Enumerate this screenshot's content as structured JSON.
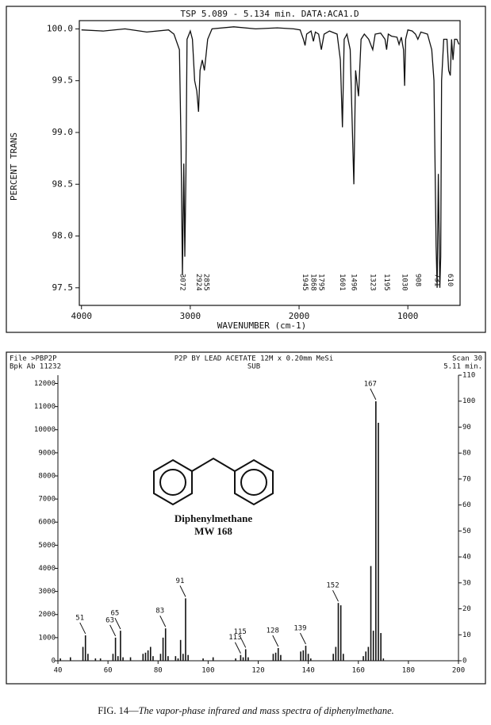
{
  "chart_data": [
    {
      "type": "line",
      "title": "TSP  5.089 - 5.134 min.  DATA:ACA1.D",
      "y_label": "PERCENT TRANS",
      "x_label": "WAVENUMBER (cm-1)",
      "xlim": [
        4020,
        520
      ],
      "xticks": [
        4000,
        3000,
        2000,
        1000
      ],
      "ylim": [
        97.33,
        100.08
      ],
      "yticks": [
        {
          "value": 100,
          "label": "100.0"
        },
        99.5,
        {
          "value": 99,
          "label": "99.0"
        },
        98.5,
        {
          "value": 98,
          "label": "98.0"
        },
        97.5
      ],
      "color": "#111111",
      "x": [
        4000,
        3800,
        3600,
        3400,
        3200,
        3150,
        3100,
        3085,
        3072,
        3060,
        3050,
        3040,
        3030,
        3000,
        2980,
        2960,
        2940,
        2924,
        2910,
        2890,
        2870,
        2855,
        2840,
        2800,
        2600,
        2400,
        2200,
        2050,
        1990,
        1960,
        1945,
        1930,
        1890,
        1868,
        1850,
        1820,
        1795,
        1770,
        1720,
        1650,
        1620,
        1601,
        1585,
        1560,
        1530,
        1496,
        1480,
        1453,
        1430,
        1400,
        1360,
        1323,
        1300,
        1250,
        1210,
        1195,
        1180,
        1150,
        1100,
        1081,
        1060,
        1040,
        1030,
        1020,
        1000,
        960,
        930,
        908,
        880,
        820,
        780,
        760,
        740,
        731,
        720,
        706,
        698,
        690,
        670,
        640,
        625,
        610,
        598,
        585,
        570,
        550,
        530
      ],
      "values": [
        99.99,
        99.98,
        100.0,
        99.97,
        99.99,
        99.95,
        99.8,
        98.9,
        97.62,
        98.7,
        97.8,
        98.6,
        99.9,
        99.98,
        99.9,
        99.5,
        99.4,
        99.2,
        99.6,
        99.7,
        99.6,
        99.75,
        99.9,
        100.0,
        100.02,
        100.0,
        100.01,
        100.0,
        99.99,
        99.9,
        99.84,
        99.95,
        99.98,
        99.88,
        99.97,
        99.95,
        99.8,
        99.95,
        99.98,
        99.95,
        99.7,
        99.05,
        99.9,
        99.95,
        99.8,
        98.5,
        99.6,
        99.35,
        99.9,
        99.95,
        99.9,
        99.8,
        99.95,
        99.96,
        99.9,
        99.8,
        99.95,
        99.93,
        99.92,
        99.85,
        99.92,
        99.8,
        99.45,
        99.9,
        99.99,
        99.98,
        99.95,
        99.9,
        99.97,
        99.95,
        99.8,
        99.5,
        97.9,
        97.5,
        98.6,
        97.5,
        97.8,
        99.5,
        99.9,
        99.9,
        99.6,
        99.55,
        99.9,
        99.7,
        99.9,
        99.9,
        99.85
      ],
      "peak_labels": [
        3072,
        2924,
        2855,
        1945,
        1868,
        1795,
        1601,
        1496,
        1323,
        1195,
        1030,
        908,
        731,
        610
      ]
    },
    {
      "type": "bar",
      "title": "P2P BY LEAD ACETATE 12M x 0.20mm MeSi",
      "subtitle": "SUB",
      "file": "File >PBP2P",
      "base_peak": "Bpk Ab 11232",
      "scan": "Scan 30",
      "time": "5.11 min.",
      "compound": "Diphenylmethane",
      "mw": "MW 168",
      "color": "#111111",
      "xlim": [
        40,
        200
      ],
      "xticks": [
        40,
        60,
        80,
        100,
        120,
        140,
        160,
        180,
        200
      ],
      "ylim": [
        0,
        12360
      ],
      "yticks": [
        0,
        1000,
        2000,
        3000,
        4000,
        5000,
        6000,
        7000,
        8000,
        9000,
        10000,
        11000,
        12000
      ],
      "y2lim": [
        0,
        110
      ],
      "y2ticks": [
        0,
        10,
        20,
        30,
        40,
        50,
        60,
        70,
        80,
        90,
        100,
        110
      ],
      "x": [
        41,
        45,
        50,
        51,
        52,
        55,
        57,
        62,
        63,
        64,
        65,
        66,
        69,
        74,
        75,
        76,
        77,
        78,
        81,
        82,
        83,
        84,
        87,
        88,
        89,
        90,
        91,
        92,
        98,
        102,
        111,
        113,
        114,
        115,
        116,
        126,
        127,
        128,
        129,
        137,
        138,
        139,
        140,
        141,
        150,
        151,
        152,
        153,
        154,
        162,
        163,
        164,
        165,
        166,
        167,
        168,
        169,
        170
      ],
      "values": [
        100,
        150,
        600,
        1100,
        300,
        100,
        100,
        300,
        1000,
        200,
        1300,
        150,
        150,
        300,
        350,
        450,
        600,
        200,
        300,
        1000,
        1400,
        200,
        200,
        100,
        900,
        300,
        2700,
        250,
        100,
        150,
        100,
        250,
        150,
        500,
        150,
        300,
        350,
        550,
        250,
        400,
        450,
        650,
        300,
        100,
        300,
        600,
        2500,
        2400,
        300,
        200,
        400,
        600,
        4100,
        1300,
        11232,
        10300,
        1200,
        100
      ],
      "peak_labels": [
        51,
        63,
        65,
        83,
        91,
        113,
        115,
        128,
        139,
        152,
        167
      ]
    }
  ],
  "caption": {
    "label": "FIG. 14—",
    "text": "The vapor-phase infrared and mass spectra of diphenylmethane."
  }
}
